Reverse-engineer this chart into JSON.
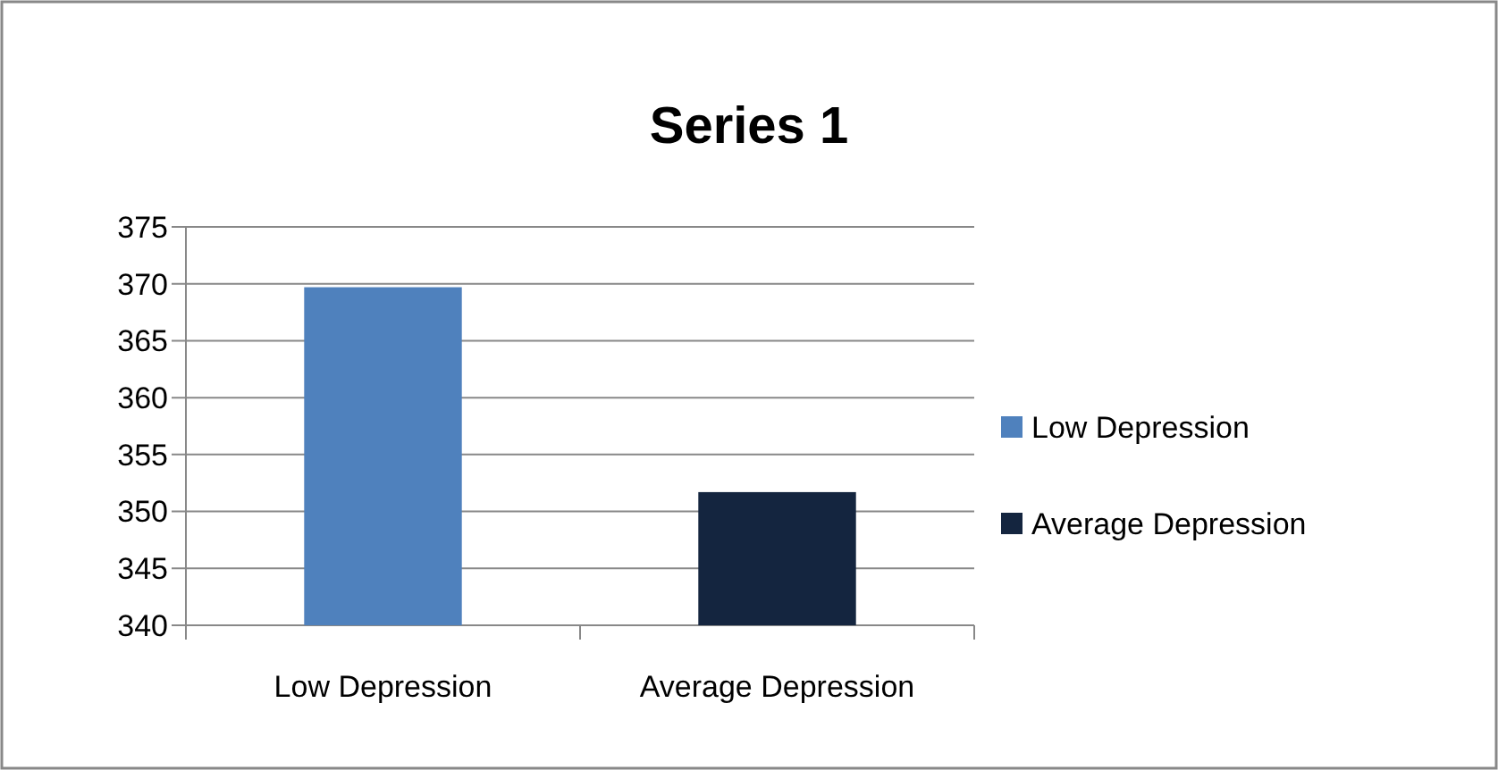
{
  "chart_data": {
    "type": "bar",
    "title": "Series 1",
    "categories": [
      "Low Depression",
      "Average Depression"
    ],
    "series": [
      {
        "name": "Low Depression",
        "color": "#4f81bd",
        "values": [
          369.7,
          null
        ]
      },
      {
        "name": "Average Depression",
        "color": "#14253f",
        "values": [
          null,
          351.7
        ]
      }
    ],
    "ylim": [
      340,
      375
    ],
    "yticks": [
      340,
      345,
      350,
      355,
      360,
      365,
      370,
      375
    ],
    "grid": "y",
    "legend": "right"
  }
}
